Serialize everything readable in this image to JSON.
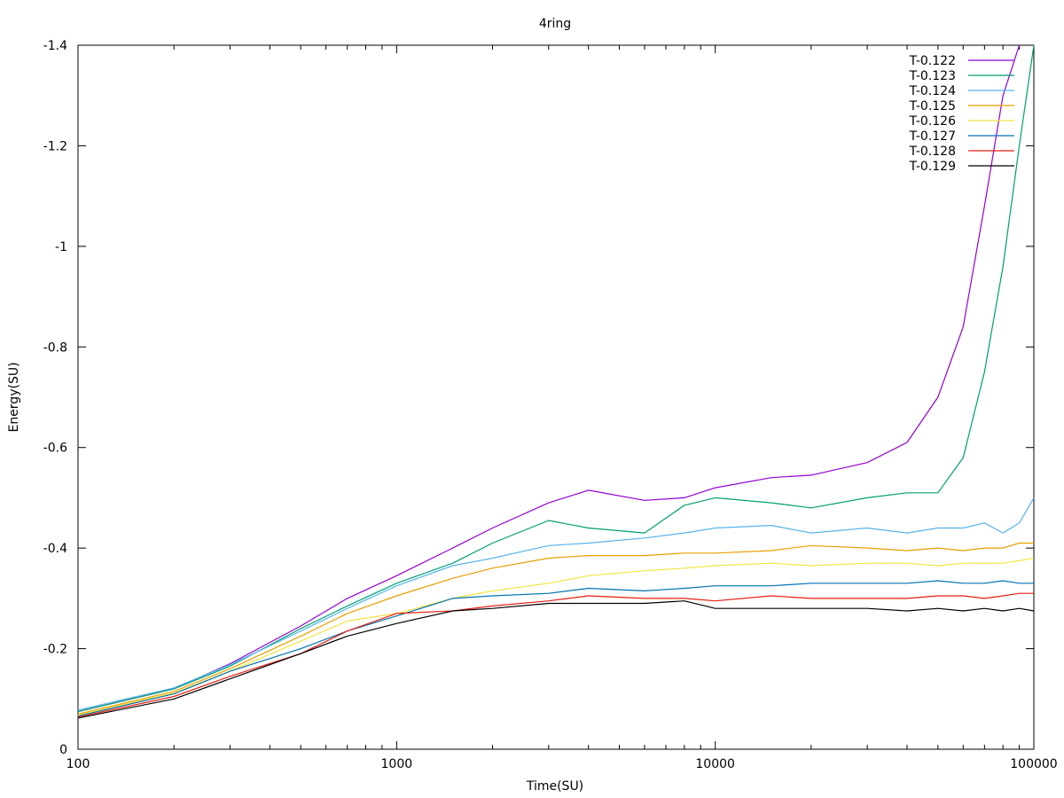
{
  "chart_data": {
    "type": "line",
    "title": "4ring",
    "xlabel": "Time(SU)",
    "ylabel": "Energy(SU)",
    "xscale": "log",
    "xlim": [
      100,
      100000
    ],
    "ylim": [
      0,
      -1.4
    ],
    "y_inverted": true,
    "grid": false,
    "legend_position": "top-right",
    "xticks": [
      100,
      1000,
      10000,
      100000
    ],
    "xtick_labels": [
      "100",
      "1000",
      "10000",
      "100000"
    ],
    "yticks": [
      0,
      -0.2,
      -0.4,
      -0.6,
      -0.8,
      -1,
      -1.2,
      -1.4
    ],
    "ytick_labels": [
      "0",
      "-0.2",
      "-0.4",
      "-0.6",
      "-0.8",
      "-1",
      "-1.2",
      "-1.4"
    ],
    "series": [
      {
        "name": "T-0.122",
        "color": "#9400d3",
        "x": [
          100,
          200,
          300,
          500,
          700,
          1000,
          1500,
          2000,
          3000,
          4000,
          6000,
          8000,
          10000,
          15000,
          20000,
          30000,
          40000,
          50000,
          60000,
          70000,
          80000,
          90000
        ],
        "y": [
          -0.075,
          -0.12,
          -0.17,
          -0.245,
          -0.3,
          -0.345,
          -0.4,
          -0.44,
          -0.49,
          -0.515,
          -0.495,
          -0.5,
          -0.52,
          -0.54,
          -0.545,
          -0.57,
          -0.61,
          -0.7,
          -0.84,
          -1.08,
          -1.3,
          -1.42
        ]
      },
      {
        "name": "T-0.123",
        "color": "#009e73",
        "x": [
          100,
          200,
          300,
          500,
          700,
          1000,
          1500,
          2000,
          3000,
          4000,
          6000,
          8000,
          10000,
          15000,
          20000,
          30000,
          40000,
          50000,
          60000,
          70000,
          80000,
          90000,
          100000
        ],
        "y": [
          -0.075,
          -0.12,
          -0.165,
          -0.24,
          -0.285,
          -0.33,
          -0.37,
          -0.41,
          -0.455,
          -0.44,
          -0.43,
          -0.485,
          -0.5,
          -0.49,
          -0.48,
          -0.5,
          -0.51,
          -0.51,
          -0.58,
          -0.75,
          -0.96,
          -1.2,
          -1.42
        ]
      },
      {
        "name": "T-0.124",
        "color": "#56b4e9",
        "x": [
          100,
          200,
          300,
          500,
          700,
          1000,
          1500,
          2000,
          3000,
          4000,
          6000,
          8000,
          10000,
          15000,
          20000,
          30000,
          40000,
          50000,
          60000,
          70000,
          80000,
          90000,
          100000
        ],
        "y": [
          -0.078,
          -0.122,
          -0.168,
          -0.235,
          -0.28,
          -0.325,
          -0.365,
          -0.38,
          -0.405,
          -0.41,
          -0.42,
          -0.43,
          -0.44,
          -0.445,
          -0.43,
          -0.44,
          -0.43,
          -0.44,
          -0.44,
          -0.45,
          -0.43,
          -0.45,
          -0.5
        ]
      },
      {
        "name": "T-0.125",
        "color": "#e69f00",
        "x": [
          100,
          200,
          300,
          500,
          700,
          1000,
          1500,
          2000,
          3000,
          4000,
          6000,
          8000,
          10000,
          15000,
          20000,
          30000,
          40000,
          50000,
          60000,
          70000,
          80000,
          90000,
          100000
        ],
        "y": [
          -0.07,
          -0.115,
          -0.16,
          -0.225,
          -0.27,
          -0.305,
          -0.34,
          -0.36,
          -0.38,
          -0.385,
          -0.385,
          -0.39,
          -0.39,
          -0.395,
          -0.405,
          -0.4,
          -0.395,
          -0.4,
          -0.395,
          -0.4,
          -0.4,
          -0.41,
          -0.41
        ]
      },
      {
        "name": "T-0.126",
        "color": "#f0e442",
        "x": [
          100,
          200,
          300,
          500,
          700,
          1000,
          1500,
          2000,
          3000,
          4000,
          6000,
          8000,
          10000,
          15000,
          20000,
          30000,
          40000,
          50000,
          60000,
          70000,
          80000,
          90000,
          100000
        ],
        "y": [
          -0.068,
          -0.112,
          -0.155,
          -0.215,
          -0.255,
          -0.27,
          -0.3,
          -0.315,
          -0.33,
          -0.345,
          -0.355,
          -0.36,
          -0.365,
          -0.37,
          -0.365,
          -0.37,
          -0.37,
          -0.365,
          -0.37,
          -0.37,
          -0.37,
          -0.375,
          -0.38
        ]
      },
      {
        "name": "T-0.127",
        "color": "#0072b2",
        "x": [
          100,
          200,
          300,
          500,
          700,
          1000,
          1500,
          2000,
          3000,
          4000,
          6000,
          8000,
          10000,
          15000,
          20000,
          30000,
          40000,
          50000,
          60000,
          70000,
          80000,
          90000,
          100000
        ],
        "y": [
          -0.066,
          -0.11,
          -0.155,
          -0.2,
          -0.235,
          -0.265,
          -0.3,
          -0.305,
          -0.31,
          -0.32,
          -0.315,
          -0.32,
          -0.325,
          -0.325,
          -0.33,
          -0.33,
          -0.33,
          -0.335,
          -0.33,
          -0.33,
          -0.335,
          -0.33,
          -0.33
        ]
      },
      {
        "name": "T-0.128",
        "color": "#e51e10",
        "x": [
          100,
          200,
          300,
          500,
          700,
          1000,
          1500,
          2000,
          3000,
          4000,
          6000,
          8000,
          10000,
          15000,
          20000,
          30000,
          40000,
          50000,
          60000,
          70000,
          80000,
          90000,
          100000
        ],
        "y": [
          -0.064,
          -0.105,
          -0.145,
          -0.19,
          -0.235,
          -0.27,
          -0.275,
          -0.285,
          -0.295,
          -0.305,
          -0.3,
          -0.3,
          -0.295,
          -0.305,
          -0.3,
          -0.3,
          -0.3,
          -0.305,
          -0.305,
          -0.3,
          -0.305,
          -0.31,
          -0.31
        ]
      },
      {
        "name": "T-0.129",
        "color": "#000000",
        "x": [
          100,
          200,
          300,
          500,
          700,
          1000,
          1500,
          2000,
          3000,
          4000,
          6000,
          8000,
          10000,
          15000,
          20000,
          30000,
          40000,
          50000,
          60000,
          70000,
          80000,
          90000,
          100000
        ],
        "y": [
          -0.062,
          -0.1,
          -0.14,
          -0.19,
          -0.225,
          -0.25,
          -0.275,
          -0.28,
          -0.29,
          -0.29,
          -0.29,
          -0.295,
          -0.28,
          -0.28,
          -0.28,
          -0.28,
          -0.275,
          -0.28,
          -0.275,
          -0.28,
          -0.275,
          -0.28,
          -0.275
        ]
      }
    ]
  }
}
